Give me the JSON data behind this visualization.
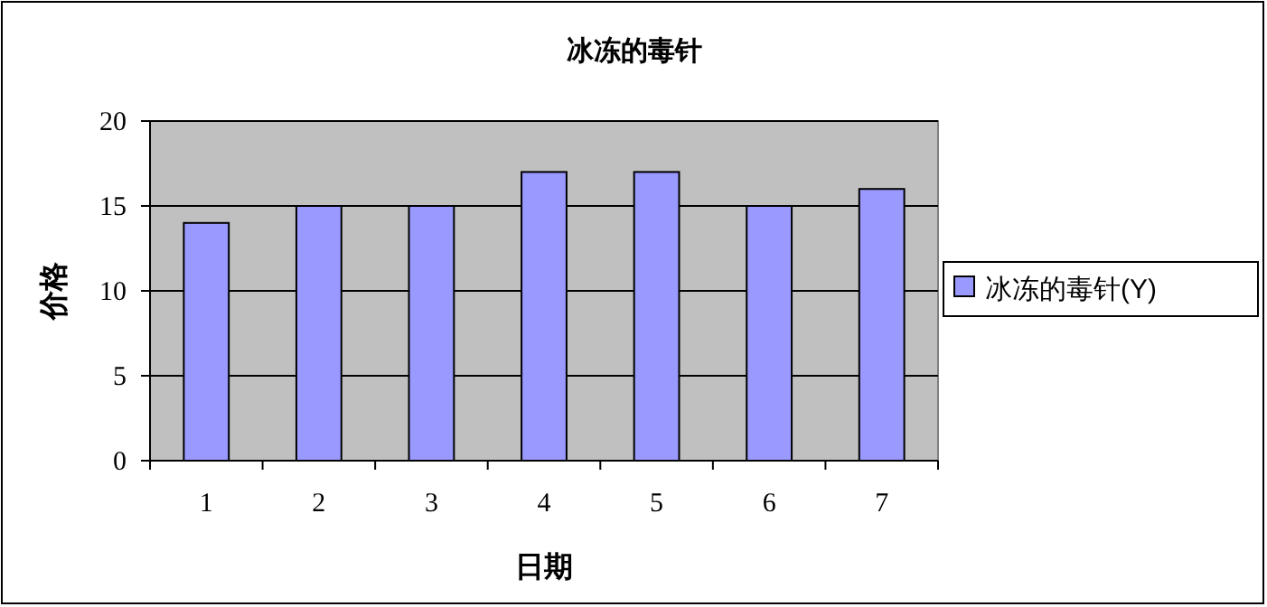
{
  "chart_data": {
    "type": "bar",
    "title": "冰冻的毒针",
    "xlabel": "日期",
    "ylabel": "价格",
    "categories": [
      "1",
      "2",
      "3",
      "4",
      "5",
      "6",
      "7"
    ],
    "series": [
      {
        "name": "冰冻的毒针(Y)",
        "color": "#9999ff",
        "values": [
          14,
          15,
          15,
          17,
          17,
          15,
          16
        ]
      }
    ],
    "ylim": [
      0,
      20
    ],
    "yticks": [
      0,
      5,
      10,
      15,
      20
    ],
    "grid": "y",
    "legend": "right"
  }
}
